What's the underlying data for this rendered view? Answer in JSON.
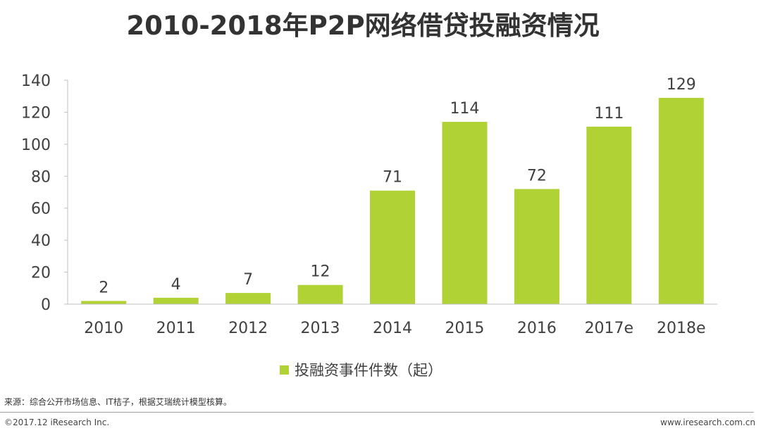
{
  "page": {
    "title": "2010-2018年P2P网络借贷投融资情况",
    "source": "来源：综合公开市场信息、IT桔子，根据艾瑞统计模型核算。",
    "copyright": "©2017.12 iResearch Inc.",
    "website": "www.iresearch.com.cn"
  },
  "chart_data": {
    "type": "bar",
    "title": "2010-2018年P2P网络借贷投融资情况",
    "categories": [
      "2010",
      "2011",
      "2012",
      "2013",
      "2014",
      "2015",
      "2016",
      "2017e",
      "2018e"
    ],
    "series": [
      {
        "name": "投融资事件件数（起）",
        "values": [
          2,
          4,
          7,
          12,
          71,
          114,
          72,
          111,
          129
        ],
        "color": "#b0d235"
      }
    ],
    "xlabel": "",
    "ylabel": "",
    "ylim": [
      0,
      140
    ],
    "yticks": [
      0,
      20,
      40,
      60,
      80,
      100,
      120,
      140
    ],
    "grid": false,
    "legend_position": "bottom-center",
    "data_labels": true
  },
  "colors": {
    "bar": "#b0d235",
    "axis": "#bfbfbf",
    "text": "#404040"
  }
}
